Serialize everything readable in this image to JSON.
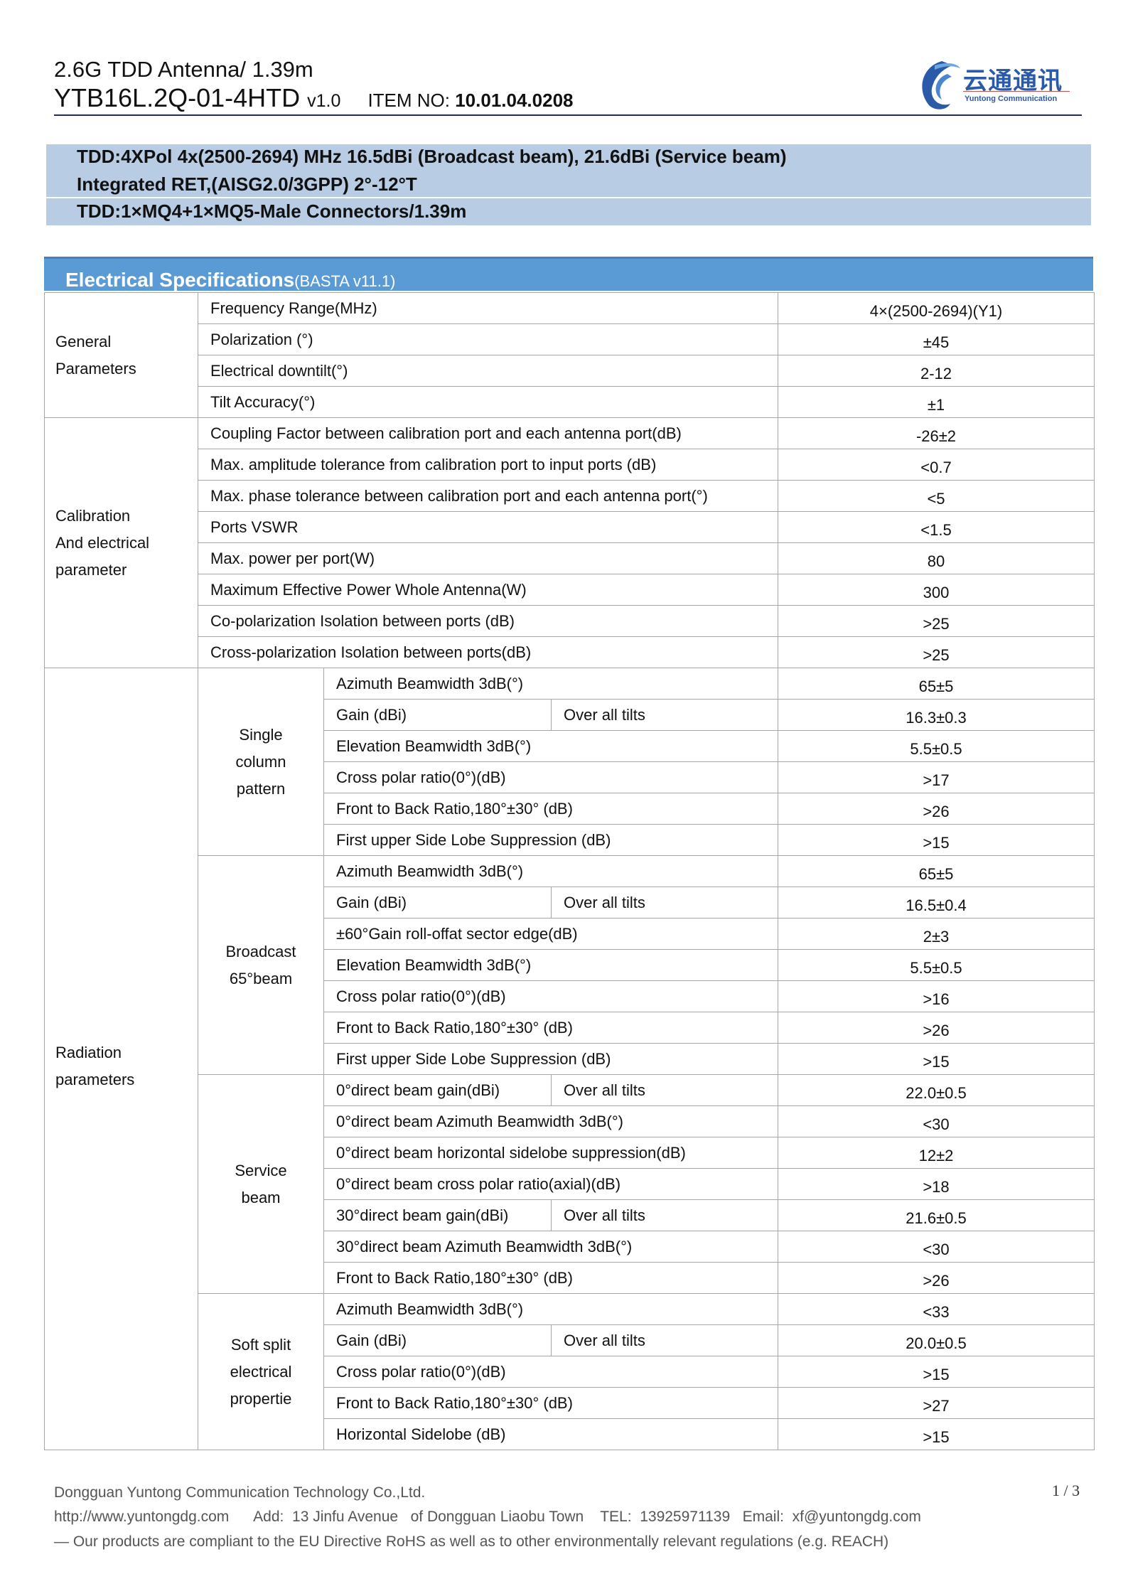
{
  "header": {
    "title": "2.6G TDD Antenna/ 1.39m",
    "model": "YTB16L.2Q-01-4HTD",
    "version": "v1.0",
    "item_label": "ITEM NO: ",
    "item_no": "10.01.04.0208",
    "logo_cn": "云通通讯",
    "logo_en": "Yuntong Communication"
  },
  "banner": [
    "TDD:4XPol 4x(2500-2694) MHz 16.5dBi (Broadcast beam), 21.6dBi (Service beam)",
    "Integrated RET,(AISG2.0/3GPP) 2°-12°T",
    "TDD:1×MQ4+1×MQ5-Male Connectors/1.39m"
  ],
  "section": {
    "title": "Electrical Specifications",
    "subtitle": "(BASTA v11.1)"
  },
  "groups": [
    {
      "label": "General\nParameters",
      "rows": [
        {
          "param": " Frequency Range(MHz)",
          "value": "4×(2500-2694)(Y1)"
        },
        {
          "param": "Polarization (°)",
          "value": "±45"
        },
        {
          "param": "Electrical downtilt(°)",
          "value": "2-12"
        },
        {
          "param": "Tilt Accuracy(°)",
          "value": "±1"
        }
      ]
    },
    {
      "label": "Calibration\nAnd electrical\nparameter",
      "rows": [
        {
          "param": "Coupling Factor between calibration port and each antenna port(dB)",
          "value": "-26±2"
        },
        {
          "param": "Max. amplitude tolerance from calibration port to input ports (dB)",
          "value": "<0.7"
        },
        {
          "param": "Max. phase tolerance between calibration port and each antenna port(°)",
          "value": "<5"
        },
        {
          "param": "Ports VSWR",
          "value": "<1.5"
        },
        {
          "param": "Max. power per port(W)",
          "value": "80"
        },
        {
          "param": "Maximum Effective Power Whole Antenna(W)",
          "value": "300"
        },
        {
          "param": "Co-polarization Isolation between ports (dB)",
          "value": ">25"
        },
        {
          "param": "Cross-polarization Isolation between ports(dB)",
          "value": ">25"
        }
      ]
    }
  ],
  "radiation": {
    "label": "Radiation\nparameters",
    "subgroups": [
      {
        "label": "Single\ncolumn\npattern",
        "rows": [
          {
            "param": "Azimuth Beamwidth 3dB(°)",
            "value": "65±5"
          },
          {
            "param": "Gain (dBi)",
            "condition": "Over all tilts",
            "value": "16.3±0.3"
          },
          {
            "param": "Elevation Beamwidth 3dB(°)",
            "value": "5.5±0.5"
          },
          {
            "param": "Cross polar ratio(0°)(dB)",
            "value": ">17"
          },
          {
            "param": "Front to Back Ratio,180°±30° (dB)",
            "value": ">26"
          },
          {
            "param": "First upper Side Lobe Suppression (dB)",
            "value": ">15"
          }
        ]
      },
      {
        "label": "Broadcast\n65°beam",
        "rows": [
          {
            "param": "Azimuth Beamwidth 3dB(°)",
            "value": "65±5"
          },
          {
            "param": "Gain (dBi)",
            "condition": "Over all tilts",
            "value": "16.5±0.4"
          },
          {
            "param": "±60°Gain roll-offat sector edge(dB)",
            "value": "2±3"
          },
          {
            "param": "Elevation Beamwidth 3dB(°)",
            "value": "5.5±0.5"
          },
          {
            "param": "Cross polar ratio(0°)(dB)",
            "value": ">16"
          },
          {
            "param": "Front to Back Ratio,180°±30° (dB)",
            "value": ">26"
          },
          {
            "param": "First upper Side Lobe Suppression (dB)",
            "value": ">15"
          }
        ]
      },
      {
        "label": "Service\nbeam",
        "rows": [
          {
            "param": "0°direct beam gain(dBi)",
            "condition": "Over all tilts",
            "value": "22.0±0.5"
          },
          {
            "param": "0°direct beam Azimuth Beamwidth 3dB(°)",
            "value": "<30"
          },
          {
            "param": "0°direct beam horizontal sidelobe suppression(dB)",
            "value": "12±2"
          },
          {
            "param": "0°direct beam cross polar ratio(axial)(dB)",
            "value": ">18"
          },
          {
            "param": "30°direct beam gain(dBi)",
            "condition": "Over all tilts",
            "value": "21.6±0.5"
          },
          {
            "param": "30°direct beam Azimuth Beamwidth 3dB(°)",
            "value": "<30"
          },
          {
            "param": "Front to Back Ratio,180°±30° (dB)",
            "value": ">26"
          }
        ]
      },
      {
        "label": "Soft split\nelectrical\npropertie",
        "rows": [
          {
            "param": "Azimuth Beamwidth 3dB(°)",
            "value": "<33"
          },
          {
            "param": "Gain (dBi)",
            "condition": "Over all tilts",
            "value": "20.0±0.5"
          },
          {
            "param": "Cross polar ratio(0°)(dB)",
            "value": ">15"
          },
          {
            "param": "Front to Back Ratio,180°±30° (dB)",
            "value": ">27"
          },
          {
            "param": "Horizontal Sidelobe (dB)",
            "value": ">15"
          }
        ]
      }
    ]
  },
  "footer": {
    "company": "Dongguan Yuntong Communication Technology Co.,Ltd.",
    "contact": "http://www.yuntongdg.com      Add:  13 Jinfu Avenue   of Dongguan Liaobu Town    TEL:  13925971139   Email:  xf@yuntongdg.com",
    "compliance": "— Our products are compliant to the EU Directive RoHS as well as to other environmentally relevant regulations (e.g. REACH)",
    "page": "1 / 3"
  },
  "colors": {
    "banner": "#b8cce4",
    "section_header": "#5b9bd5",
    "rule": "#1f2a6b"
  }
}
